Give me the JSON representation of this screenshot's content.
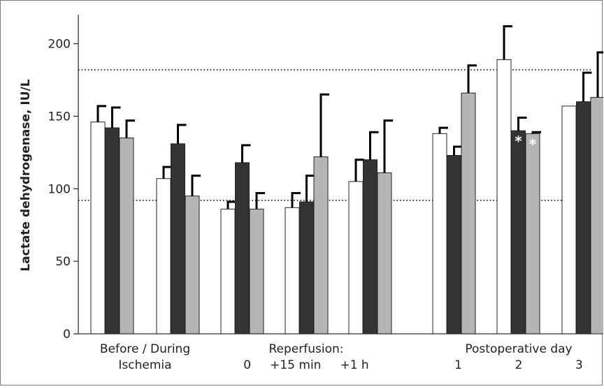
{
  "chart_data": {
    "type": "bar",
    "ylabel": "Lactate dehydrogenase, IU/L",
    "ylim": [
      0,
      220
    ],
    "yticks": [
      0,
      50,
      100,
      150,
      200
    ],
    "reference_lines": [
      92,
      182
    ],
    "categories": [
      "Before",
      "During",
      "0",
      "+15 min",
      "+1 h",
      "1",
      "2",
      "3"
    ],
    "x_groups": [
      {
        "lines": [
          "Before / During",
          "Ischemia"
        ],
        "from": 0,
        "to": 1
      },
      {
        "lines": [
          "Reperfusion:",
          "0     +15 min     +1 h"
        ],
        "from": 2,
        "to": 4
      },
      {
        "lines": [
          "Postoperative day",
          "1              2              3"
        ],
        "from": 5,
        "to": 7
      }
    ],
    "series": [
      {
        "color": "#ffffff",
        "values": [
          146,
          107,
          86,
          87,
          105,
          138,
          189,
          157
        ],
        "errors": [
          11,
          8,
          5,
          10,
          15,
          4,
          23,
          0
        ]
      },
      {
        "color": "#333333",
        "values": [
          142,
          131,
          118,
          91,
          120,
          123,
          140,
          160
        ],
        "errors": [
          14,
          13,
          12,
          18,
          19,
          6,
          9,
          20
        ]
      },
      {
        "color": "#b5b5b5",
        "values": [
          135,
          95,
          86,
          122,
          111,
          166,
          138,
          163
        ],
        "errors": [
          12,
          14,
          11,
          43,
          36,
          19,
          1,
          31
        ]
      }
    ],
    "annotations": [
      {
        "text": "*",
        "category": 6,
        "series": 1,
        "color": "#ffffff"
      },
      {
        "text": "*",
        "category": 6,
        "series": 2,
        "color": "#ffffff"
      }
    ]
  }
}
